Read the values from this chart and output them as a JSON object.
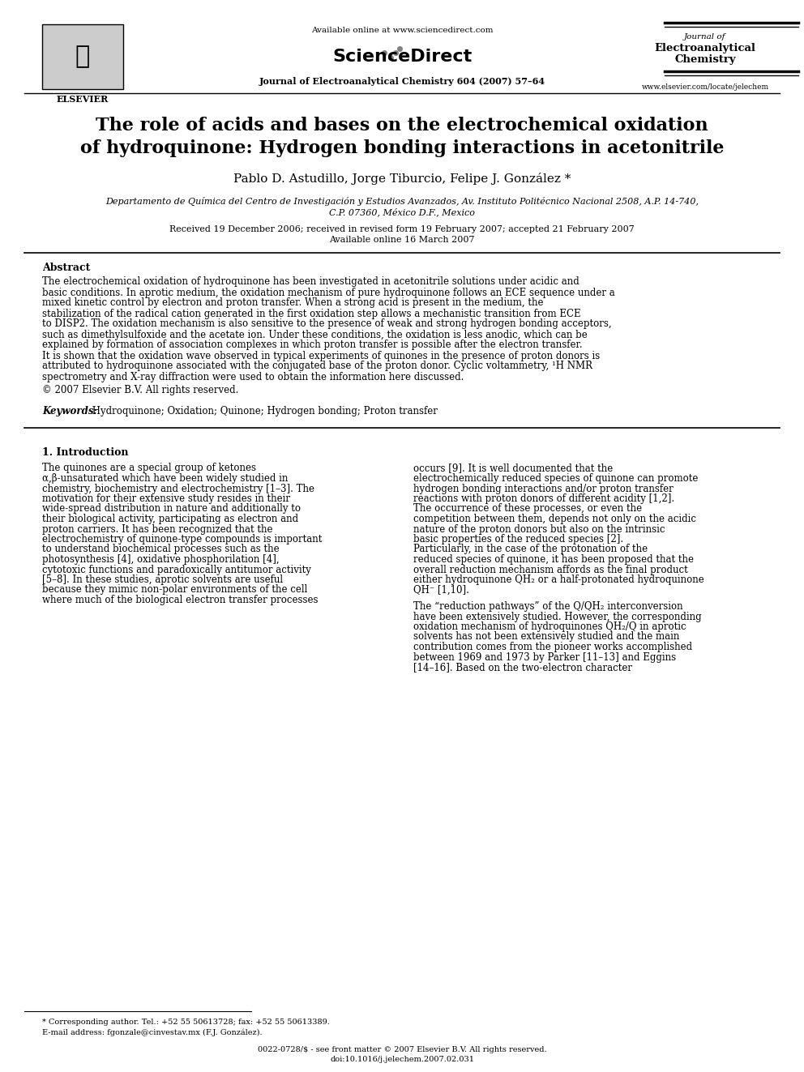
{
  "bg_color": "#ffffff",
  "title_line1": "The role of acids and bases on the electrochemical oxidation",
  "title_line2": "of hydroquinone: Hydrogen bonding interactions in acetonitrile",
  "authors": "Pablo D. Astudillo, Jorge Tiburcio, Felipe J. González *",
  "affiliation_line1": "Departamento de Química del Centro de Investigación y Estudios Avanzados, Av. Instituto Politécnico Nacional 2508, A.P. 14-740,",
  "affiliation_line2": "C.P. 07360, México D.F., Mexico",
  "received": "Received 19 December 2006; received in revised form 19 February 2007; accepted 21 February 2007",
  "available": "Available online 16 March 2007",
  "journal_header": "Journal of Electroanalytical Chemistry 604 (2007) 57–64",
  "available_online": "Available online at www.sciencedirect.com",
  "journal_name_line1": "Journal of",
  "journal_name_line2": "Electroanalytical",
  "journal_name_line3": "Chemistry",
  "url": "www.elsevier.com/locate/jelechem",
  "issn": "0022-0728/$ - see front matter © 2007 Elsevier B.V. All rights reserved.",
  "doi": "doi:10.1016/j.jelechem.2007.02.031",
  "footnote_line1": "* Corresponding author. Tel.: +52 55 50613728; fax: +52 55 50613389.",
  "footnote_line2": "E-mail address: fgonzale@cinvestav.mx (F.J. González).",
  "abstract_title": "Abstract",
  "abstract_text": "The electrochemical oxidation of hydroquinone has been investigated in acetonitrile solutions under acidic and basic conditions. In aprotic medium, the oxidation mechanism of pure hydroquinone follows an ECE sequence under a mixed kinetic control by electron and proton transfer. When a strong acid is present in the medium, the stabilization of the radical cation generated in the first oxidation step allows a mechanistic transition from ECE to DISP2. The oxidation mechanism is also sensitive to the presence of weak and strong hydrogen bonding acceptors, such as dimethylsulfoxide and the acetate ion. Under these conditions, the oxidation is less anodic, which can be explained by formation of association complexes in which proton transfer is possible after the electron transfer. It is shown that the oxidation wave observed in typical experiments of quinones in the presence of proton donors is attributed to hydroquinone associated with the conjugated base of the proton donor. Cyclic voltammetry, ¹H NMR spectrometry and X-ray diffraction were used to obtain the information here discussed.",
  "copyright": "© 2007 Elsevier B.V. All rights reserved.",
  "keywords_label": "Keywords:",
  "keywords": " Hydroquinone; Oxidation; Quinone; Hydrogen bonding; Proton transfer",
  "section1_title": "1. Introduction",
  "section1_col1_para1": "The quinones are a special group of ketones α,β-unsaturated which have been widely studied in chemistry, biochemistry and electrochemistry [1–3]. The motivation for their extensive study resides in their wide-spread distribution in nature and additionally to their biological activity, participating as electron and proton carriers. It has been recognized that the electrochemistry of quinone-type compounds is important to understand biochemical processes such as the photosynthesis [4], oxidative phosphorilation [4], cytotoxic functions and paradoxically antitumor activity [5–8]. In these studies, aprotic solvents are useful because they mimic non-polar environments of the cell where much of the biological electron transfer processes",
  "section1_col2_para1": "occurs [9]. It is well documented that the electrochemically reduced species of quinone can promote hydrogen bonding interactions and/or proton transfer reactions with proton donors of different acidity [1,2]. The occurrence of these processes, or even the competition between them, depends not only on the acidic nature of the proton donors but also on the intrinsic basic properties of the reduced species [2]. Particularly, in the case of the protonation of the reduced species of quinone, it has been proposed that the overall reduction mechanism affords as the final product either hydroquinone QH₂ or a half-protonated hydroquinone QH⁻ [1,10].",
  "section1_col2_para2": "The “reduction pathways” of the Q/QH₂ interconversion have been extensively studied. However, the corresponding oxidation mechanism of hydroquinones QH₂/Q in aprotic solvents has not been extensively studied and the main contribution comes from the pioneer works accomplished between 1969 and 1973 by Parker [11–13] and Eggins [14–16]. Based on the two-electron character"
}
